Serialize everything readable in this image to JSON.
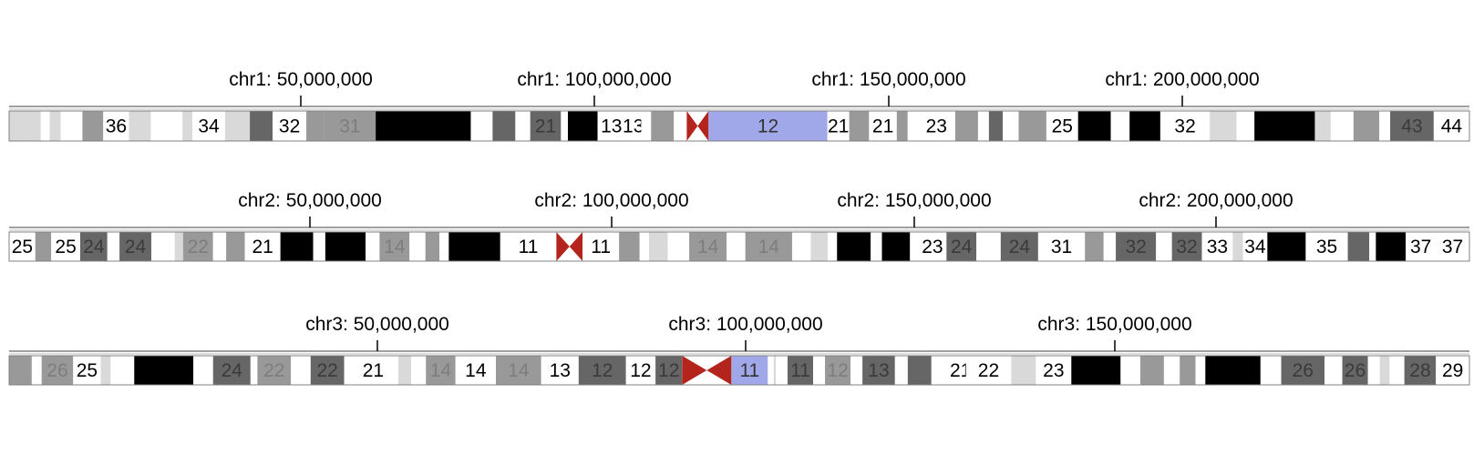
{
  "colors": {
    "gneg": "#ffffff",
    "gpos25": "#d9d9d9",
    "gpos50": "#999999",
    "gpos75": "#666666",
    "gpos100": "#000000",
    "acen": "#b3241d",
    "selected": "#a1a8ea",
    "outline": "#808080"
  },
  "chromosomes": [
    {
      "name": "chr1",
      "ticks": [
        "chr1: 50,000,000",
        "chr1: 100,000,000",
        "chr1: 150,000,000",
        "chr1: 200,000,000"
      ],
      "bands": [
        {
          "w": 12,
          "s": "gpos25"
        },
        {
          "w": 20,
          "s": "gpos25"
        },
        {
          "w": 9,
          "s": "gneg"
        },
        {
          "w": 11,
          "s": "gpos25"
        },
        {
          "w": 22,
          "s": "gneg"
        },
        {
          "w": 21,
          "s": "gpos50"
        },
        {
          "w": 26,
          "s": "gneg",
          "label": "36"
        },
        {
          "w": 22,
          "s": "gpos25"
        },
        {
          "w": 20,
          "s": "gneg"
        },
        {
          "w": 12,
          "s": "gneg"
        },
        {
          "w": 10,
          "s": "gpos25"
        },
        {
          "w": 33,
          "s": "gneg",
          "label": "34"
        },
        {
          "w": 25,
          "s": "gpos25"
        },
        {
          "w": 23,
          "s": "gpos75"
        },
        {
          "w": 34,
          "s": "gneg",
          "label": "32"
        },
        {
          "w": 18,
          "s": "gpos50"
        },
        {
          "w": 52,
          "s": "gpos50",
          "label": "31"
        },
        {
          "w": 96,
          "s": "gpos100"
        },
        {
          "w": 22,
          "s": "gneg"
        },
        {
          "w": 23,
          "s": "gpos75"
        },
        {
          "w": 15,
          "s": "gneg"
        },
        {
          "w": 31,
          "s": "gpos75",
          "label": "21"
        },
        {
          "w": 7,
          "s": "gneg"
        },
        {
          "w": 30,
          "s": "gpos100"
        },
        {
          "w": 28,
          "s": "gneg",
          "label": "13"
        },
        {
          "w": 16,
          "s": "gneg",
          "label": "13"
        },
        {
          "w": 10,
          "s": "gneg"
        },
        {
          "w": 23,
          "s": "gpos50"
        },
        {
          "w": 13,
          "s": "gneg"
        },
        {
          "w": 22,
          "s": "acen",
          "pos": "p"
        },
        {
          "w": 120,
          "s": "selected",
          "label": "12"
        },
        {
          "w": 22,
          "s": "gneg",
          "label": "21"
        },
        {
          "w": 20,
          "s": "gpos50"
        },
        {
          "w": 28,
          "s": "gneg",
          "label": "21"
        },
        {
          "w": 11,
          "s": "gpos50"
        },
        {
          "w": 10,
          "s": "gneg"
        },
        {
          "w": 38,
          "s": "gneg",
          "label": "23"
        },
        {
          "w": 23,
          "s": "gpos50"
        },
        {
          "w": 11,
          "s": "gneg"
        },
        {
          "w": 14,
          "s": "gpos75"
        },
        {
          "w": 16,
          "s": "gneg"
        },
        {
          "w": 28,
          "s": "gpos50"
        },
        {
          "w": 32,
          "s": "gneg",
          "label": "25"
        },
        {
          "w": 33,
          "s": "gpos100"
        },
        {
          "w": 19,
          "s": "gneg"
        },
        {
          "w": 31,
          "s": "gpos100"
        },
        {
          "w": 50,
          "s": "gneg",
          "label": "32"
        },
        {
          "w": 27,
          "s": "gpos25"
        },
        {
          "w": 18,
          "s": "gneg"
        },
        {
          "w": 61,
          "s": "gpos100"
        },
        {
          "w": 16,
          "s": "gpos25"
        },
        {
          "w": 23,
          "s": "gneg"
        },
        {
          "w": 26,
          "s": "gpos50"
        },
        {
          "w": 11,
          "s": "gneg"
        },
        {
          "w": 44,
          "s": "gpos75",
          "label": "43"
        },
        {
          "w": 36,
          "s": "gneg",
          "label": "44"
        }
      ]
    },
    {
      "name": "chr2",
      "ticks": [
        "chr2: 50,000,000",
        "chr2: 100,000,000",
        "chr2: 150,000,000",
        "chr2: 200,000,000"
      ],
      "bands": [
        {
          "w": 28,
          "s": "gneg",
          "label": "25"
        },
        {
          "w": 17,
          "s": "gpos50"
        },
        {
          "w": 31,
          "s": "gneg",
          "label": "25"
        },
        {
          "w": 29,
          "s": "gpos75",
          "label": "24"
        },
        {
          "w": 13,
          "s": "gneg"
        },
        {
          "w": 34,
          "s": "gpos75",
          "label": "24"
        },
        {
          "w": 25,
          "s": "gneg"
        },
        {
          "w": 9,
          "s": "gpos25"
        },
        {
          "w": 32,
          "s": "gpos50",
          "label": "22"
        },
        {
          "w": 14,
          "s": "gneg"
        },
        {
          "w": 20,
          "s": "gpos50"
        },
        {
          "w": 38,
          "s": "gneg",
          "label": "21"
        },
        {
          "w": 35,
          "s": "gpos100"
        },
        {
          "w": 13,
          "s": "gneg"
        },
        {
          "w": 43,
          "s": "gpos100"
        },
        {
          "w": 15,
          "s": "gneg"
        },
        {
          "w": 32,
          "s": "gpos50",
          "label": "14"
        },
        {
          "w": 17,
          "s": "gneg"
        },
        {
          "w": 15,
          "s": "gpos50"
        },
        {
          "w": 10,
          "s": "gneg"
        },
        {
          "w": 55,
          "s": "gpos100"
        },
        {
          "w": 60,
          "s": "gneg",
          "label": "11"
        },
        {
          "w": 28,
          "s": "acen",
          "pos": "p"
        },
        {
          "w": 39,
          "s": "gneg",
          "label": "11"
        },
        {
          "w": 22,
          "s": "gpos50"
        },
        {
          "w": 10,
          "s": "gneg"
        },
        {
          "w": 20,
          "s": "gpos25"
        },
        {
          "w": 23,
          "s": "gneg"
        },
        {
          "w": 40,
          "s": "gpos50",
          "label": "14"
        },
        {
          "w": 20,
          "s": "gneg"
        },
        {
          "w": 50,
          "s": "gpos50",
          "label": "14"
        },
        {
          "w": 20,
          "s": "gneg"
        },
        {
          "w": 18,
          "s": "gpos25"
        },
        {
          "w": 10,
          "s": "gneg"
        },
        {
          "w": 36,
          "s": "gpos100"
        },
        {
          "w": 12,
          "s": "gneg"
        },
        {
          "w": 30,
          "s": "gpos100"
        },
        {
          "w": 9,
          "s": "gneg"
        },
        {
          "w": 30,
          "s": "gneg",
          "label": "23"
        },
        {
          "w": 32,
          "s": "gpos75",
          "label": "24"
        },
        {
          "w": 26,
          "s": "gneg"
        },
        {
          "w": 40,
          "s": "gpos75",
          "label": "24"
        },
        {
          "w": 50,
          "s": "gneg",
          "label": "31"
        },
        {
          "w": 20,
          "s": "gpos50"
        },
        {
          "w": 13,
          "s": "gneg"
        },
        {
          "w": 43,
          "s": "gpos75",
          "label": "32"
        },
        {
          "w": 17,
          "s": "gneg"
        },
        {
          "w": 32,
          "s": "gpos75",
          "label": "32"
        },
        {
          "w": 33,
          "s": "gneg",
          "label": "33"
        },
        {
          "w": 11,
          "s": "gpos25"
        },
        {
          "w": 26,
          "s": "gneg",
          "label": "34"
        },
        {
          "w": 41,
          "s": "gpos100"
        },
        {
          "w": 45,
          "s": "gneg",
          "label": "35"
        },
        {
          "w": 23,
          "s": "gpos75"
        },
        {
          "w": 7,
          "s": "gneg"
        },
        {
          "w": 32,
          "s": "gpos100"
        },
        {
          "w": 32,
          "s": "gneg",
          "label": "37"
        },
        {
          "w": 36,
          "s": "gneg",
          "label": "37"
        }
      ]
    },
    {
      "name": "chr3",
      "ticks": [
        "chr3: 50,000,000",
        "chr3: 100,000,000",
        "chr3: 150,000,000"
      ],
      "bands": [
        {
          "w": 23,
          "s": "gpos50"
        },
        {
          "w": 10,
          "s": "gneg"
        },
        {
          "w": 32,
          "s": "gpos50",
          "label": "26"
        },
        {
          "w": 28,
          "s": "gneg",
          "label": "25"
        },
        {
          "w": 10,
          "s": "gpos25"
        },
        {
          "w": 24,
          "s": "gneg"
        },
        {
          "w": 60,
          "s": "gpos100"
        },
        {
          "w": 20,
          "s": "gneg"
        },
        {
          "w": 38,
          "s": "gpos75",
          "label": "24"
        },
        {
          "w": 7,
          "s": "gneg"
        },
        {
          "w": 34,
          "s": "gpos50",
          "label": "22"
        },
        {
          "w": 20,
          "s": "gneg"
        },
        {
          "w": 34,
          "s": "gpos75",
          "label": "22"
        },
        {
          "w": 4,
          "s": "gneg"
        },
        {
          "w": 51,
          "s": "gneg",
          "label": "21"
        },
        {
          "w": 13,
          "s": "gpos25"
        },
        {
          "w": 15,
          "s": "gneg"
        },
        {
          "w": 30,
          "s": "gpos50",
          "label": "14"
        },
        {
          "w": 41,
          "s": "gneg",
          "label": "14"
        },
        {
          "w": 46,
          "s": "gpos50",
          "label": "14"
        },
        {
          "w": 38,
          "s": "gneg",
          "label": "13"
        },
        {
          "w": 48,
          "s": "gpos75",
          "label": "12"
        },
        {
          "w": 30,
          "s": "gneg",
          "label": "12"
        },
        {
          "w": 27,
          "s": "gpos75",
          "label": "12"
        },
        {
          "w": 50,
          "s": "acen",
          "pos": "p"
        },
        {
          "w": 37,
          "s": "selected",
          "label": "11"
        },
        {
          "w": 6,
          "s": "gneg"
        },
        {
          "w": 2,
          "s": "gpos25"
        },
        {
          "w": 12,
          "s": "gneg"
        },
        {
          "w": 26,
          "s": "gpos75",
          "label": "11"
        },
        {
          "w": 12,
          "s": "gneg"
        },
        {
          "w": 26,
          "s": "gpos50",
          "label": "12"
        },
        {
          "w": 12,
          "s": "gneg"
        },
        {
          "w": 33,
          "s": "gpos75",
          "label": "13"
        },
        {
          "w": 13,
          "s": "gneg"
        },
        {
          "w": 24,
          "s": "gpos75"
        },
        {
          "w": 24,
          "s": "gneg"
        },
        {
          "w": 11,
          "s": "gneg",
          "label": "21"
        },
        {
          "w": 46,
          "s": "gneg",
          "label": "22"
        },
        {
          "w": 25,
          "s": "gpos25"
        },
        {
          "w": 36,
          "s": "gneg",
          "label": "23"
        },
        {
          "w": 50,
          "s": "gpos100"
        },
        {
          "w": 20,
          "s": "gneg"
        },
        {
          "w": 24,
          "s": "gpos50"
        },
        {
          "w": 16,
          "s": "gneg"
        },
        {
          "w": 16,
          "s": "gpos50"
        },
        {
          "w": 10,
          "s": "gneg"
        },
        {
          "w": 56,
          "s": "gpos100"
        },
        {
          "w": 21,
          "s": "gneg"
        },
        {
          "w": 44,
          "s": "gpos75",
          "label": "26"
        },
        {
          "w": 18,
          "s": "gneg"
        },
        {
          "w": 26,
          "s": "gpos75",
          "label": "26"
        },
        {
          "w": 12,
          "s": "gneg"
        },
        {
          "w": 10,
          "s": "gpos25"
        },
        {
          "w": 15,
          "s": "gneg"
        },
        {
          "w": 32,
          "s": "gpos75",
          "label": "28"
        },
        {
          "w": 34,
          "s": "gneg",
          "label": "29"
        }
      ]
    }
  ]
}
